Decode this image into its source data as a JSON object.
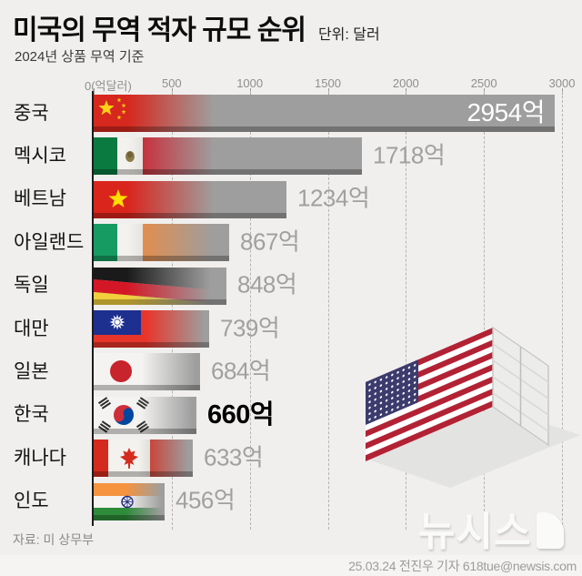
{
  "header": {
    "title": "미국의 무역 적자 규모 순위",
    "unit": "단위: 달러",
    "subtitle": "2024년 상품 무역 기준"
  },
  "axis": {
    "ticks": [
      "0(억달러)",
      "500",
      "1000",
      "1500",
      "2000",
      "2500",
      "3000"
    ],
    "max": 3000
  },
  "rows": [
    {
      "country": "중국",
      "flag": "cn",
      "value": 2954,
      "label": "2954억",
      "label_style": "inside-white"
    },
    {
      "country": "멕시코",
      "flag": "mx",
      "value": 1718,
      "label": "1718억",
      "label_style": "normal"
    },
    {
      "country": "베트남",
      "flag": "vn",
      "value": 1234,
      "label": "1234억",
      "label_style": "normal"
    },
    {
      "country": "아일랜드",
      "flag": "ie",
      "value": 867,
      "label": "867억",
      "label_style": "normal"
    },
    {
      "country": "독일",
      "flag": "de",
      "value": 848,
      "label": "848억",
      "label_style": "normal"
    },
    {
      "country": "대만",
      "flag": "tw",
      "value": 739,
      "label": "739억",
      "label_style": "normal"
    },
    {
      "country": "일본",
      "flag": "jp",
      "value": 684,
      "label": "684억",
      "label_style": "normal"
    },
    {
      "country": "한국",
      "flag": "kr",
      "value": 660,
      "label": "660억",
      "label_style": "highlight"
    },
    {
      "country": "캐나다",
      "flag": "ca",
      "value": 633,
      "label": "633억",
      "label_style": "normal"
    },
    {
      "country": "인도",
      "flag": "in",
      "value": 456,
      "label": "456억",
      "label_style": "normal"
    }
  ],
  "footer": {
    "source": "자료: 미 상무부",
    "logo": "뉴시스",
    "credit": "25.03.24 전진우 기자 618tue@newsis.com"
  },
  "colors": {
    "background": "#f0efed",
    "bar": "#9e9e9e",
    "bar_shadow": "#717171",
    "value_text": "#a0a0a0",
    "highlight_text": "#000000",
    "axis_text": "#8f8f8f"
  },
  "chart_data": {
    "type": "bar",
    "orientation": "horizontal",
    "title": "미국의 무역 적자 규모 순위",
    "subtitle": "2024년 상품 무역 기준",
    "unit": "단위: 달러 (억달러)",
    "source": "자료: 미 상무부",
    "categories": [
      "중국",
      "멕시코",
      "베트남",
      "아일랜드",
      "독일",
      "대만",
      "일본",
      "한국",
      "캐나다",
      "인도"
    ],
    "values": [
      2954,
      1718,
      1234,
      867,
      848,
      739,
      684,
      660,
      633,
      456
    ],
    "value_labels": [
      "2954억",
      "1718억",
      "1234억",
      "867억",
      "848억",
      "739억",
      "684억",
      "660억",
      "633억",
      "456억"
    ],
    "xlim": [
      0,
      3000
    ],
    "xticks": [
      0,
      500,
      1000,
      1500,
      2000,
      2500,
      3000
    ],
    "grid": "dashed-vertical",
    "highlighted_category": "한국"
  }
}
